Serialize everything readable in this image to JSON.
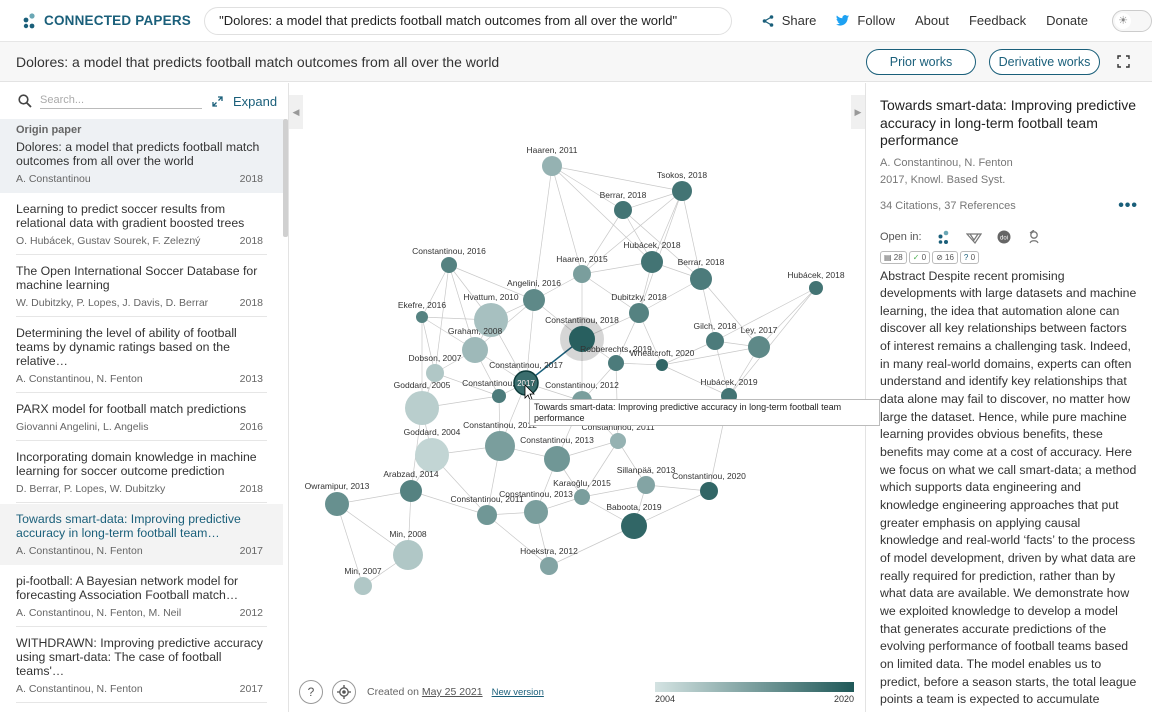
{
  "app": {
    "logo_text": "CONNECTED PAPERS"
  },
  "topbar": {
    "search_value": "\"Dolores: a model that predicts football match outcomes from all over the world\"",
    "share": "Share",
    "follow": "Follow",
    "about": "About",
    "feedback": "Feedback",
    "donate": "Donate"
  },
  "titlebar": {
    "title": "Dolores: a model that predicts football match outcomes from all over the world",
    "prior": "Prior works",
    "derivative": "Derivative works"
  },
  "sidebar": {
    "search_placeholder": "Search...",
    "expand": "Expand",
    "origin_label": "Origin paper",
    "items": [
      {
        "title": "Dolores: a model that predicts football match outcomes from all over the world",
        "authors": "A. Constantinou",
        "year": "2018"
      },
      {
        "title": "Learning to predict soccer results from relational data with gradient boosted trees",
        "authors": "O. Hubácek, Gustav Sourek, F. Zelezný",
        "year": "2018"
      },
      {
        "title": "The Open International Soccer Database for machine learning",
        "authors": "W. Dubitzky, P. Lopes, J. Davis, D. Berrar",
        "year": "2018"
      },
      {
        "title": "Determining the level of ability of football teams by dynamic ratings based on the relative…",
        "authors": "A. Constantinou, N. Fenton",
        "year": "2013"
      },
      {
        "title": "PARX model for football match predictions",
        "authors": "Giovanni Angelini, L. Angelis",
        "year": "2016"
      },
      {
        "title": "Incorporating domain knowledge in machine learning for soccer outcome prediction",
        "authors": "D. Berrar, P. Lopes, W. Dubitzky",
        "year": "2018"
      },
      {
        "title": "Towards smart-data: Improving predictive accuracy in long-term football team…",
        "authors": "A. Constantinou, N. Fenton",
        "year": "2017"
      },
      {
        "title": "pi-football: A Bayesian network model for forecasting Association Football match…",
        "authors": "A. Constantinou, N. Fenton, M. Neil",
        "year": "2012"
      },
      {
        "title": "WITHDRAWN: Improving predictive accuracy using smart-data: The case of football teams'…",
        "authors": "A. Constantinou, N. Fenton",
        "year": "2017"
      }
    ]
  },
  "graph": {
    "tooltip": "Towards smart-data: Improving predictive accuracy in long-term football team performance",
    "selected_node_label": "2017",
    "created_prefix": "Created on",
    "created_date": "May 25 2021",
    "new_version": "New version",
    "legend_min": "2004",
    "legend_max": "2020",
    "nodes": [
      {
        "label": "Haaren, 2011"
      },
      {
        "label": "Tsokos, 2018"
      },
      {
        "label": "Berrar, 2018"
      },
      {
        "label": "Constantinou, 2016"
      },
      {
        "label": "Haaren, 2015"
      },
      {
        "label": "Hubácek, 2018"
      },
      {
        "label": "Berrar, 2018"
      },
      {
        "label": "Hubácek, 2018"
      },
      {
        "label": "Angelini, 2016"
      },
      {
        "label": "Ekefre, 2016"
      },
      {
        "label": "Hvattum, 2010"
      },
      {
        "label": "Dubitzky, 2018"
      },
      {
        "label": "Constantinou, 2018"
      },
      {
        "label": "Gilch, 2018"
      },
      {
        "label": "Ley, 2017"
      },
      {
        "label": "Graham, 2008"
      },
      {
        "label": "Robberechts, 2019"
      },
      {
        "label": "Wheatcroft, 2020"
      },
      {
        "label": "Dobson, 2007"
      },
      {
        "label": "Constantinou, 2017"
      },
      {
        "label": "Hubácek, 2019"
      },
      {
        "label": "Goddard, 2005"
      },
      {
        "label": "Constantinou, 2017"
      },
      {
        "label": "Constantinou, 2012"
      },
      {
        "label": "Constantinou, 2011"
      },
      {
        "label": "Goddard, 2004"
      },
      {
        "label": "Constantinou, 2012"
      },
      {
        "label": "Constantinou, 2013"
      },
      {
        "label": "Arabzad, 2014"
      },
      {
        "label": "Sillanpää, 2013"
      },
      {
        "label": "Karaoğlu, 2015"
      },
      {
        "label": "Owramipur, 2013"
      },
      {
        "label": "Constantinou, 2011"
      },
      {
        "label": "Constantinou, 2013"
      },
      {
        "label": "Constantinou, 2020"
      },
      {
        "label": "Baboota, 2019"
      },
      {
        "label": "Min, 2008"
      },
      {
        "label": "Hoekstra, 2012"
      },
      {
        "label": "Min, 2007"
      }
    ]
  },
  "details": {
    "title": "Towards smart-data: Improving predictive accuracy in long-term football team performance",
    "authors": "A. Constantinou, N. Fenton",
    "venue": "2017, Knowl. Based Syst.",
    "citations": "34 Citations, 37 References",
    "open_in": "Open in:",
    "badges": [
      "28",
      "0",
      "16",
      "0"
    ],
    "abstract": "Abstract Despite recent promising developments with large datasets and machine learning, the idea that automation alone can discover all key relationships between factors of interest remains a challenging task. Indeed, in many real-world domains, experts can often understand and identify key relationships that data alone may fail to discover, no matter how large the dataset. Hence, while pure machine learning provides obvious benefits, these benefits may come at a cost of accuracy. Here we focus on what we call smart-data; a method which supports data engineering and knowledge engineering approaches that put greater emphasis on applying causal knowledge and real-world ‘facts’ to the process of model development, driven by what data are really required for prediction, rather than by what data are available. We demonstrate how we exploited knowledge to develop a model that generates accurate predictions of the evolving performance of football teams based on limited data. The model enables us to predict, before a season starts, the total league points a team is expected to accumulate throughout the season."
  }
}
